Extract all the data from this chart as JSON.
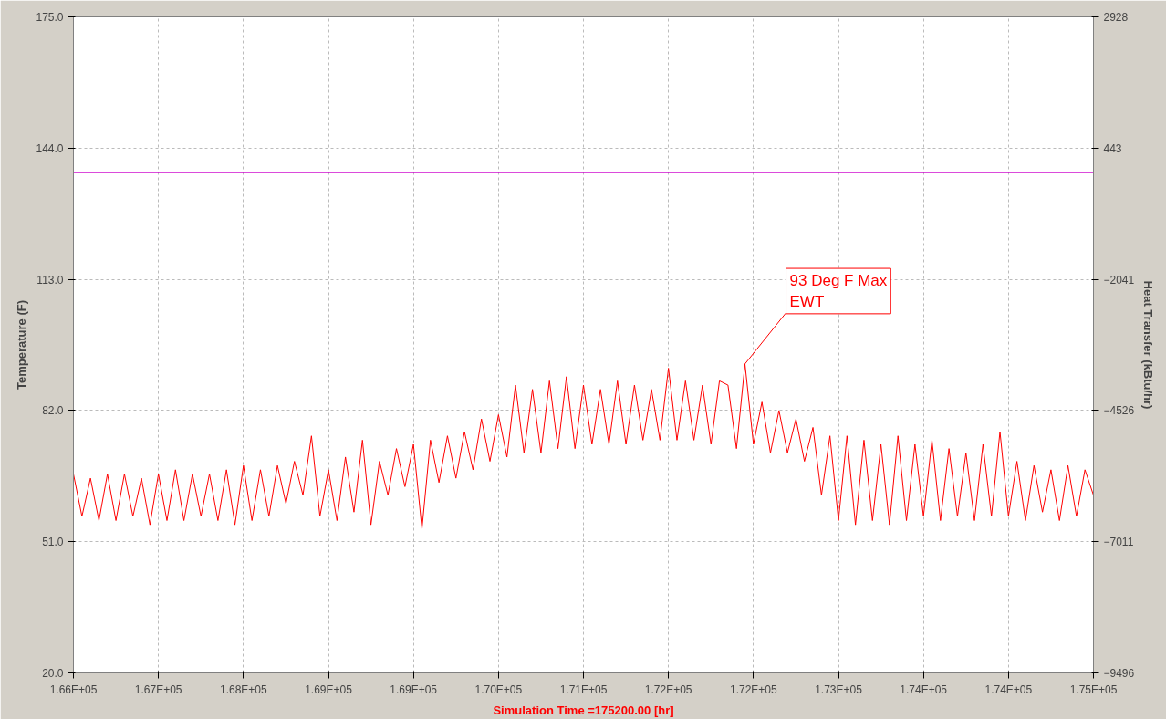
{
  "chart_data": {
    "type": "line",
    "xlabel": "Simulation Time =175200.00 [hr]",
    "ylabel": "Temperature (F)",
    "y2label": "Heat Transfer (kBtu/hr)",
    "xlim": [
      166440,
      175200
    ],
    "xticks": [
      {
        "value": 166440,
        "label": "1.66E+05"
      },
      {
        "value": 167170,
        "label": "1.67E+05"
      },
      {
        "value": 167900,
        "label": "1.68E+05"
      },
      {
        "value": 168630,
        "label": "1.69E+05"
      },
      {
        "value": 169360,
        "label": "1.69E+05"
      },
      {
        "value": 170090,
        "label": "1.70E+05"
      },
      {
        "value": 170820,
        "label": "1.71E+05"
      },
      {
        "value": 171550,
        "label": "1.72E+05"
      },
      {
        "value": 172280,
        "label": "1.72E+05"
      },
      {
        "value": 173010,
        "label": "1.73E+05"
      },
      {
        "value": 173740,
        "label": "1.74E+05"
      },
      {
        "value": 174470,
        "label": "1.74E+05"
      },
      {
        "value": 175200,
        "label": "1.75E+05"
      }
    ],
    "ylim": [
      20,
      175
    ],
    "yticks": [
      {
        "value": 20,
        "label": "20.0"
      },
      {
        "value": 51,
        "label": "51.0"
      },
      {
        "value": 82,
        "label": "82.0"
      },
      {
        "value": 113,
        "label": "113.0"
      },
      {
        "value": 144,
        "label": "144.0"
      },
      {
        "value": 175,
        "label": "175.0"
      }
    ],
    "y2lim": [
      -9496,
      2928
    ],
    "y2ticks": [
      -9496,
      -7011,
      -4526,
      -2041,
      443,
      2928
    ],
    "grid": true,
    "line_style": "solid",
    "annotations": [
      {
        "text": "93 Deg F Max\nEWT",
        "x": 172207,
        "y": 93
      }
    ],
    "series": [
      {
        "color": "#ff0000",
        "x": [
          166440,
          166513,
          166586,
          166659,
          166732,
          166805,
          166878,
          166951,
          167024,
          167097,
          167170,
          167243,
          167316,
          167389,
          167462,
          167535,
          167608,
          167681,
          167754,
          167827,
          167900,
          167973,
          168046,
          168119,
          168192,
          168265,
          168338,
          168411,
          168484,
          168557,
          168630,
          168703,
          168776,
          168849,
          168922,
          168995,
          169068,
          169141,
          169214,
          169287,
          169360,
          169433,
          169506,
          169579,
          169652,
          169725,
          169798,
          169871,
          169944,
          170017,
          170090,
          170163,
          170236,
          170309,
          170382,
          170455,
          170528,
          170601,
          170674,
          170747,
          170820,
          170893,
          170966,
          171039,
          171112,
          171185,
          171258,
          171331,
          171404,
          171477,
          171550,
          171623,
          171696,
          171769,
          171842,
          171915,
          171988,
          172061,
          172134,
          172207,
          172280,
          172353,
          172426,
          172499,
          172572,
          172645,
          172718,
          172791,
          172864,
          172937,
          173010,
          173083,
          173156,
          173229,
          173302,
          173375,
          173448,
          173521,
          173594,
          173667,
          173740,
          173813,
          173886,
          173959,
          174032,
          174105,
          174178,
          174251,
          174324,
          174397,
          174470,
          174543,
          174616,
          174689,
          174762,
          174835,
          174908,
          174981,
          175054,
          175127,
          175200
        ],
        "values": [
          67,
          57,
          66,
          56,
          67,
          56,
          67,
          57,
          66,
          55,
          67,
          56,
          68,
          56,
          67,
          57,
          67,
          56,
          68,
          55,
          69,
          56,
          68,
          57,
          69,
          60,
          70,
          62,
          76,
          57,
          68,
          56,
          71,
          58,
          75,
          55,
          70,
          62,
          73,
          64,
          74,
          54,
          75,
          65,
          76,
          66,
          77,
          68,
          80,
          70,
          81,
          71,
          88,
          72,
          87,
          72,
          89,
          73,
          90,
          73,
          88,
          74,
          87,
          74,
          89,
          74,
          88,
          75,
          87,
          75,
          92,
          75,
          89,
          75,
          88,
          74,
          89,
          88,
          73,
          93,
          74,
          84,
          72,
          82,
          72,
          80,
          70,
          78,
          62,
          76,
          56,
          76,
          55,
          75,
          56,
          74,
          55,
          76,
          56,
          74,
          57,
          75,
          56,
          73,
          57,
          72,
          56,
          74,
          57,
          77,
          57,
          70,
          56,
          69,
          58,
          68,
          56,
          69,
          57,
          68,
          62
        ]
      },
      {
        "color": "#cc00cc",
        "x": [
          166440,
          175200
        ],
        "values": [
          138.2,
          138.2
        ]
      }
    ]
  }
}
